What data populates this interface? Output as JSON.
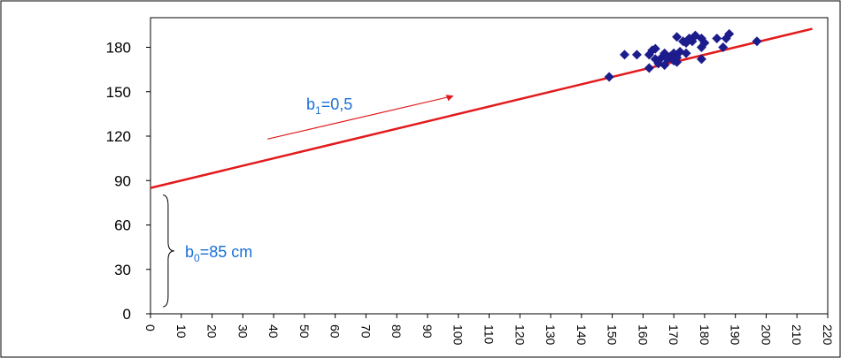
{
  "chart_data": {
    "type": "scatter",
    "title": "",
    "xlabel": "",
    "ylabel": "",
    "xlim": [
      0,
      220
    ],
    "ylim": [
      0,
      200
    ],
    "x_ticks": [
      0,
      10,
      20,
      30,
      40,
      50,
      60,
      70,
      80,
      90,
      100,
      110,
      120,
      130,
      140,
      150,
      160,
      170,
      180,
      190,
      200,
      210,
      220
    ],
    "y_ticks": [
      0,
      30,
      60,
      90,
      120,
      150,
      180
    ],
    "grid": false,
    "legend": "none",
    "series": [
      {
        "points": [
          [
            149,
            160
          ],
          [
            154,
            175
          ],
          [
            158,
            175
          ],
          [
            162,
            166
          ],
          [
            162,
            175
          ],
          [
            163,
            178
          ],
          [
            164,
            179
          ],
          [
            164,
            172
          ],
          [
            165,
            169
          ],
          [
            166,
            173
          ],
          [
            167,
            168
          ],
          [
            167,
            176
          ],
          [
            168,
            172
          ],
          [
            169,
            174
          ],
          [
            170,
            171
          ],
          [
            170,
            176
          ],
          [
            171,
            187
          ],
          [
            171,
            173
          ],
          [
            171,
            170
          ],
          [
            172,
            177
          ],
          [
            173,
            184
          ],
          [
            174,
            176
          ],
          [
            174,
            183
          ],
          [
            175,
            186
          ],
          [
            176,
            184
          ],
          [
            176,
            186
          ],
          [
            177,
            188
          ],
          [
            179,
            186
          ],
          [
            179,
            172
          ],
          [
            179,
            180
          ],
          [
            180,
            183
          ],
          [
            184,
            186
          ],
          [
            186,
            180
          ],
          [
            187,
            186
          ],
          [
            188,
            189
          ],
          [
            197,
            184
          ]
        ],
        "color": "#1c1c8c"
      }
    ],
    "regression": {
      "intercept": 85,
      "slope": 0.5,
      "x_range": [
        0,
        215
      ],
      "color": "#e31a1c"
    },
    "annotations": {
      "slope_label": {
        "main": "b",
        "sub": "1",
        "rest": "=0,5"
      },
      "intercept_label": {
        "main": "b",
        "sub": "0",
        "rest": "=85 cm"
      },
      "label_color": "#1a6fd6",
      "arrow_color": "#e31a1c"
    }
  }
}
